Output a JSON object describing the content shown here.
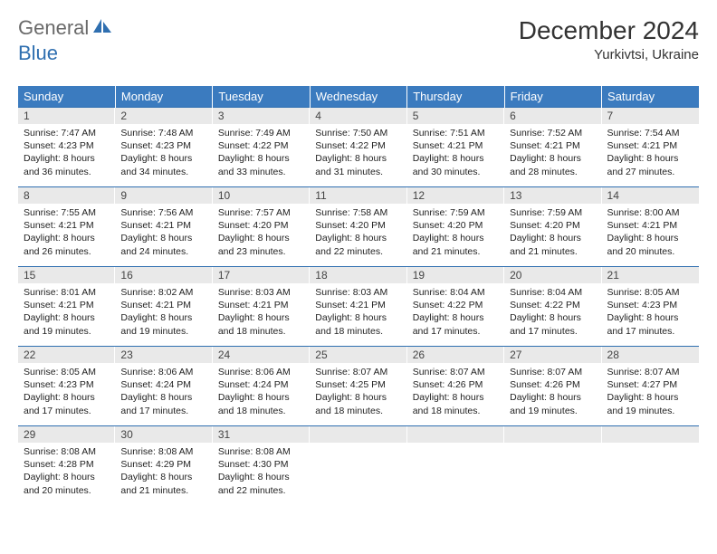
{
  "brand": {
    "part1": "General",
    "part2": "Blue"
  },
  "title": "December 2024",
  "subtitle": "Yurkivtsi, Ukraine",
  "colors": {
    "header_bg": "#3b7bbf",
    "header_text": "#ffffff",
    "row_border": "#2f6fb0",
    "daynum_bg": "#e9e9e9",
    "body_text": "#222222",
    "logo_gray": "#6a6a6a",
    "logo_blue": "#2f6fb0",
    "background": "#ffffff"
  },
  "typography": {
    "title_fontsize": 28,
    "subtitle_fontsize": 15,
    "header_fontsize": 13,
    "cell_fontsize": 10.5
  },
  "day_names": [
    "Sunday",
    "Monday",
    "Tuesday",
    "Wednesday",
    "Thursday",
    "Friday",
    "Saturday"
  ],
  "weeks": [
    [
      {
        "num": "1",
        "sunrise": "Sunrise: 7:47 AM",
        "sunset": "Sunset: 4:23 PM",
        "d1": "Daylight: 8 hours",
        "d2": "and 36 minutes."
      },
      {
        "num": "2",
        "sunrise": "Sunrise: 7:48 AM",
        "sunset": "Sunset: 4:23 PM",
        "d1": "Daylight: 8 hours",
        "d2": "and 34 minutes."
      },
      {
        "num": "3",
        "sunrise": "Sunrise: 7:49 AM",
        "sunset": "Sunset: 4:22 PM",
        "d1": "Daylight: 8 hours",
        "d2": "and 33 minutes."
      },
      {
        "num": "4",
        "sunrise": "Sunrise: 7:50 AM",
        "sunset": "Sunset: 4:22 PM",
        "d1": "Daylight: 8 hours",
        "d2": "and 31 minutes."
      },
      {
        "num": "5",
        "sunrise": "Sunrise: 7:51 AM",
        "sunset": "Sunset: 4:21 PM",
        "d1": "Daylight: 8 hours",
        "d2": "and 30 minutes."
      },
      {
        "num": "6",
        "sunrise": "Sunrise: 7:52 AM",
        "sunset": "Sunset: 4:21 PM",
        "d1": "Daylight: 8 hours",
        "d2": "and 28 minutes."
      },
      {
        "num": "7",
        "sunrise": "Sunrise: 7:54 AM",
        "sunset": "Sunset: 4:21 PM",
        "d1": "Daylight: 8 hours",
        "d2": "and 27 minutes."
      }
    ],
    [
      {
        "num": "8",
        "sunrise": "Sunrise: 7:55 AM",
        "sunset": "Sunset: 4:21 PM",
        "d1": "Daylight: 8 hours",
        "d2": "and 26 minutes."
      },
      {
        "num": "9",
        "sunrise": "Sunrise: 7:56 AM",
        "sunset": "Sunset: 4:21 PM",
        "d1": "Daylight: 8 hours",
        "d2": "and 24 minutes."
      },
      {
        "num": "10",
        "sunrise": "Sunrise: 7:57 AM",
        "sunset": "Sunset: 4:20 PM",
        "d1": "Daylight: 8 hours",
        "d2": "and 23 minutes."
      },
      {
        "num": "11",
        "sunrise": "Sunrise: 7:58 AM",
        "sunset": "Sunset: 4:20 PM",
        "d1": "Daylight: 8 hours",
        "d2": "and 22 minutes."
      },
      {
        "num": "12",
        "sunrise": "Sunrise: 7:59 AM",
        "sunset": "Sunset: 4:20 PM",
        "d1": "Daylight: 8 hours",
        "d2": "and 21 minutes."
      },
      {
        "num": "13",
        "sunrise": "Sunrise: 7:59 AM",
        "sunset": "Sunset: 4:20 PM",
        "d1": "Daylight: 8 hours",
        "d2": "and 21 minutes."
      },
      {
        "num": "14",
        "sunrise": "Sunrise: 8:00 AM",
        "sunset": "Sunset: 4:21 PM",
        "d1": "Daylight: 8 hours",
        "d2": "and 20 minutes."
      }
    ],
    [
      {
        "num": "15",
        "sunrise": "Sunrise: 8:01 AM",
        "sunset": "Sunset: 4:21 PM",
        "d1": "Daylight: 8 hours",
        "d2": "and 19 minutes."
      },
      {
        "num": "16",
        "sunrise": "Sunrise: 8:02 AM",
        "sunset": "Sunset: 4:21 PM",
        "d1": "Daylight: 8 hours",
        "d2": "and 19 minutes."
      },
      {
        "num": "17",
        "sunrise": "Sunrise: 8:03 AM",
        "sunset": "Sunset: 4:21 PM",
        "d1": "Daylight: 8 hours",
        "d2": "and 18 minutes."
      },
      {
        "num": "18",
        "sunrise": "Sunrise: 8:03 AM",
        "sunset": "Sunset: 4:21 PM",
        "d1": "Daylight: 8 hours",
        "d2": "and 18 minutes."
      },
      {
        "num": "19",
        "sunrise": "Sunrise: 8:04 AM",
        "sunset": "Sunset: 4:22 PM",
        "d1": "Daylight: 8 hours",
        "d2": "and 17 minutes."
      },
      {
        "num": "20",
        "sunrise": "Sunrise: 8:04 AM",
        "sunset": "Sunset: 4:22 PM",
        "d1": "Daylight: 8 hours",
        "d2": "and 17 minutes."
      },
      {
        "num": "21",
        "sunrise": "Sunrise: 8:05 AM",
        "sunset": "Sunset: 4:23 PM",
        "d1": "Daylight: 8 hours",
        "d2": "and 17 minutes."
      }
    ],
    [
      {
        "num": "22",
        "sunrise": "Sunrise: 8:05 AM",
        "sunset": "Sunset: 4:23 PM",
        "d1": "Daylight: 8 hours",
        "d2": "and 17 minutes."
      },
      {
        "num": "23",
        "sunrise": "Sunrise: 8:06 AM",
        "sunset": "Sunset: 4:24 PM",
        "d1": "Daylight: 8 hours",
        "d2": "and 17 minutes."
      },
      {
        "num": "24",
        "sunrise": "Sunrise: 8:06 AM",
        "sunset": "Sunset: 4:24 PM",
        "d1": "Daylight: 8 hours",
        "d2": "and 18 minutes."
      },
      {
        "num": "25",
        "sunrise": "Sunrise: 8:07 AM",
        "sunset": "Sunset: 4:25 PM",
        "d1": "Daylight: 8 hours",
        "d2": "and 18 minutes."
      },
      {
        "num": "26",
        "sunrise": "Sunrise: 8:07 AM",
        "sunset": "Sunset: 4:26 PM",
        "d1": "Daylight: 8 hours",
        "d2": "and 18 minutes."
      },
      {
        "num": "27",
        "sunrise": "Sunrise: 8:07 AM",
        "sunset": "Sunset: 4:26 PM",
        "d1": "Daylight: 8 hours",
        "d2": "and 19 minutes."
      },
      {
        "num": "28",
        "sunrise": "Sunrise: 8:07 AM",
        "sunset": "Sunset: 4:27 PM",
        "d1": "Daylight: 8 hours",
        "d2": "and 19 minutes."
      }
    ],
    [
      {
        "num": "29",
        "sunrise": "Sunrise: 8:08 AM",
        "sunset": "Sunset: 4:28 PM",
        "d1": "Daylight: 8 hours",
        "d2": "and 20 minutes."
      },
      {
        "num": "30",
        "sunrise": "Sunrise: 8:08 AM",
        "sunset": "Sunset: 4:29 PM",
        "d1": "Daylight: 8 hours",
        "d2": "and 21 minutes."
      },
      {
        "num": "31",
        "sunrise": "Sunrise: 8:08 AM",
        "sunset": "Sunset: 4:30 PM",
        "d1": "Daylight: 8 hours",
        "d2": "and 22 minutes."
      },
      {
        "empty": true
      },
      {
        "empty": true
      },
      {
        "empty": true
      },
      {
        "empty": true
      }
    ]
  ]
}
